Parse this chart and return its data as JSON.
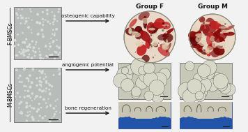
{
  "bg_color": "#f2f2f2",
  "left_labels": [
    "F-BMSCs",
    "M-BMSCs"
  ],
  "top_labels": [
    "Group F",
    "Group M"
  ],
  "arrow_labels": [
    "osteogenic capability",
    "angiogenic potential",
    "bone regeneration"
  ],
  "font_size_top": 6.5,
  "font_size_arrow": 5.2,
  "font_size_side": 5.5,
  "arrow_color": "#111111",
  "scale_bar_color": "#111111",
  "left_img_bg": "#b8bcb8",
  "left_img_dots": "#d8dcd8",
  "osteogenic_bg_F": "#e8d8c8",
  "osteogenic_bg_M": "#e8d0c0",
  "osteogenic_red": "#8b1010",
  "osteogenic_red2": "#c02020",
  "osteogenic_cream": "#e0d0b0",
  "angio_bg": "#c8c8b8",
  "angio_cell": "#d8d8c8",
  "angio_cell_edge": "#555555",
  "bone_blue": "#2255aa",
  "bone_tissue": "#c8c4b4",
  "bone_dark": "#555545"
}
